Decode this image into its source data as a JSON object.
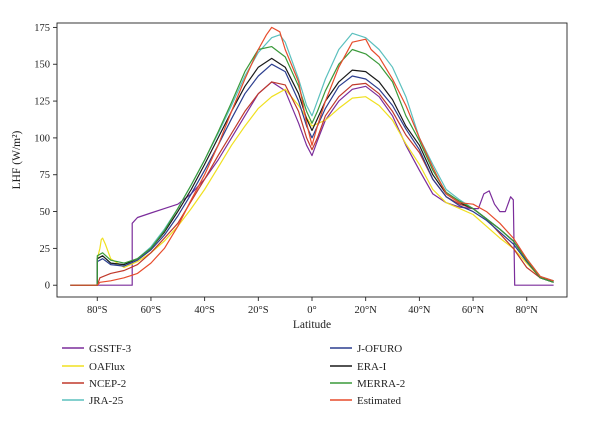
{
  "chart_data": {
    "type": "line",
    "xlabel": "Latitude",
    "ylabel": "LHF (W/m²)",
    "xlim": [
      -95,
      95
    ],
    "ylim": [
      -8,
      178
    ],
    "grid": false,
    "legend_position": "bottom",
    "x_ticks": [
      -80,
      -60,
      -40,
      -20,
      0,
      20,
      40,
      60,
      80
    ],
    "x_tick_labels": [
      "80°S",
      "60°S",
      "40°S",
      "20°S",
      "0°",
      "20°N",
      "40°N",
      "60°N",
      "80°N"
    ],
    "y_ticks": [
      0,
      25,
      50,
      75,
      100,
      125,
      150,
      175
    ],
    "y_tick_labels": [
      "0",
      "25",
      "50",
      "75",
      "100",
      "125",
      "150",
      "175"
    ],
    "series": [
      {
        "name": "GSSTF-3",
        "color": "#7b2d9b",
        "x": [
          -90,
          -67,
          -67,
          -65,
          -60,
          -55,
          -50,
          -45,
          -40,
          -35,
          -30,
          -25,
          -20,
          -15,
          -10,
          -5,
          -2,
          0,
          2,
          5,
          10,
          15,
          20,
          25,
          30,
          35,
          40,
          45,
          50,
          55,
          60,
          62,
          64,
          66,
          68,
          70,
          72,
          74,
          75,
          75.5,
          76,
          80,
          85,
          90
        ],
        "y": [
          0,
          0,
          42,
          46,
          49,
          52,
          55,
          62,
          72,
          85,
          100,
          115,
          130,
          138,
          132,
          110,
          95,
          88,
          98,
          112,
          125,
          133,
          135,
          128,
          115,
          95,
          78,
          62,
          56,
          53,
          52,
          52,
          62,
          64,
          55,
          50,
          50,
          60,
          58,
          0,
          0,
          0,
          0,
          0
        ]
      },
      {
        "name": "OAFlux",
        "color": "#f0e020",
        "x": [
          -90,
          -80,
          -80,
          -79,
          -78.5,
          -78,
          -77,
          -75,
          -70,
          -65,
          -60,
          -55,
          -50,
          -45,
          -40,
          -35,
          -30,
          -25,
          -20,
          -15,
          -10,
          -5,
          0,
          5,
          10,
          15,
          20,
          25,
          30,
          35,
          40,
          45,
          50,
          55,
          60,
          65,
          70,
          75,
          80,
          85,
          90
        ],
        "y": [
          0,
          0,
          18,
          25,
          31,
          32,
          28,
          18,
          12,
          16,
          22,
          30,
          40,
          52,
          65,
          80,
          95,
          108,
          120,
          128,
          133,
          122,
          108,
          112,
          120,
          127,
          128,
          122,
          112,
          96,
          82,
          65,
          56,
          52,
          48,
          40,
          32,
          25,
          15,
          5,
          3
        ]
      },
      {
        "name": "NCEP-2",
        "color": "#c0392b",
        "x": [
          -90,
          -80,
          -79,
          -75,
          -70,
          -65,
          -60,
          -55,
          -50,
          -45,
          -40,
          -35,
          -30,
          -25,
          -20,
          -15,
          -10,
          -5,
          -2,
          0,
          2,
          5,
          10,
          15,
          20,
          25,
          30,
          35,
          40,
          45,
          50,
          55,
          60,
          65,
          70,
          75,
          80,
          85,
          90
        ],
        "y": [
          0,
          0,
          5,
          8,
          10,
          14,
          22,
          32,
          42,
          57,
          72,
          88,
          103,
          118,
          130,
          138,
          136,
          118,
          100,
          92,
          100,
          115,
          128,
          136,
          137,
          130,
          118,
          102,
          90,
          72,
          60,
          55,
          52,
          45,
          35,
          25,
          12,
          5,
          3
        ]
      },
      {
        "name": "JRA-25",
        "color": "#5bc0be",
        "x": [
          -90,
          -80,
          -80,
          -78,
          -75,
          -70,
          -65,
          -60,
          -55,
          -50,
          -45,
          -40,
          -35,
          -30,
          -25,
          -20,
          -15,
          -12,
          -10,
          -5,
          -2,
          0,
          2,
          5,
          10,
          15,
          20,
          25,
          30,
          35,
          40,
          45,
          50,
          55,
          60,
          65,
          70,
          75,
          80,
          85,
          90
        ],
        "y": [
          0,
          0,
          18,
          20,
          15,
          14,
          18,
          26,
          38,
          52,
          68,
          85,
          103,
          122,
          142,
          158,
          168,
          170,
          165,
          140,
          122,
          115,
          125,
          140,
          160,
          171,
          168,
          160,
          148,
          128,
          100,
          82,
          65,
          58,
          52,
          45,
          38,
          30,
          18,
          6,
          3
        ]
      },
      {
        "name": "J-OFURO",
        "color": "#2c3e8f",
        "x": [
          -90,
          -80,
          -80,
          -78,
          -75,
          -70,
          -65,
          -60,
          -55,
          -50,
          -45,
          -40,
          -35,
          -30,
          -25,
          -20,
          -15,
          -10,
          -5,
          -2,
          0,
          2,
          5,
          10,
          15,
          20,
          25,
          30,
          35,
          40,
          45,
          50,
          55,
          60,
          65,
          70,
          75,
          80,
          85,
          90
        ],
        "y": [
          0,
          0,
          16,
          18,
          14,
          13,
          17,
          24,
          34,
          47,
          62,
          78,
          95,
          113,
          130,
          142,
          150,
          145,
          125,
          108,
          100,
          108,
          120,
          135,
          142,
          140,
          133,
          122,
          106,
          92,
          72,
          60,
          54,
          50,
          44,
          36,
          28,
          16,
          5,
          2
        ]
      },
      {
        "name": "ERA-I",
        "color": "#1a1a1a",
        "x": [
          -90,
          -80,
          -80,
          -78,
          -75,
          -70,
          -65,
          -60,
          -55,
          -50,
          -45,
          -40,
          -35,
          -30,
          -25,
          -20,
          -15,
          -10,
          -5,
          -2,
          0,
          2,
          5,
          10,
          15,
          20,
          25,
          30,
          35,
          40,
          45,
          50,
          55,
          60,
          65,
          70,
          75,
          80,
          85,
          90
        ],
        "y": [
          0,
          0,
          18,
          20,
          15,
          14,
          18,
          25,
          36,
          50,
          65,
          82,
          100,
          118,
          135,
          148,
          154,
          148,
          130,
          113,
          105,
          113,
          125,
          138,
          146,
          145,
          138,
          126,
          108,
          95,
          75,
          62,
          56,
          52,
          45,
          38,
          30,
          17,
          5,
          2
        ]
      },
      {
        "name": "MERRA-2",
        "color": "#3a9a3a",
        "x": [
          -90,
          -80,
          -80,
          -78,
          -75,
          -70,
          -65,
          -60,
          -55,
          -50,
          -45,
          -40,
          -35,
          -30,
          -25,
          -20,
          -15,
          -10,
          -5,
          -2,
          0,
          2,
          5,
          10,
          15,
          20,
          25,
          30,
          35,
          40,
          45,
          50,
          55,
          60,
          65,
          70,
          75,
          80,
          85,
          90
        ],
        "y": [
          0,
          0,
          20,
          22,
          17,
          15,
          18,
          25,
          37,
          52,
          68,
          85,
          104,
          124,
          145,
          160,
          162,
          155,
          135,
          118,
          110,
          118,
          132,
          150,
          160,
          157,
          150,
          138,
          115,
          98,
          78,
          63,
          57,
          52,
          45,
          38,
          30,
          17,
          5,
          2
        ]
      },
      {
        "name": "Estimated",
        "color": "#e74c2c",
        "x": [
          -90,
          -80,
          -79,
          -75,
          -70,
          -65,
          -60,
          -55,
          -50,
          -45,
          -40,
          -35,
          -30,
          -25,
          -20,
          -17,
          -15,
          -12,
          -10,
          -5,
          -2,
          0,
          2,
          5,
          10,
          15,
          20,
          22,
          25,
          30,
          35,
          40,
          45,
          50,
          55,
          60,
          65,
          70,
          75,
          80,
          85,
          90
        ],
        "y": [
          0,
          0,
          2,
          3,
          5,
          8,
          15,
          25,
          40,
          58,
          75,
          95,
          118,
          140,
          160,
          170,
          175,
          172,
          160,
          138,
          110,
          95,
          108,
          125,
          148,
          165,
          167,
          160,
          155,
          140,
          122,
          100,
          80,
          62,
          56,
          55,
          50,
          42,
          32,
          18,
          6,
          3
        ]
      }
    ]
  }
}
